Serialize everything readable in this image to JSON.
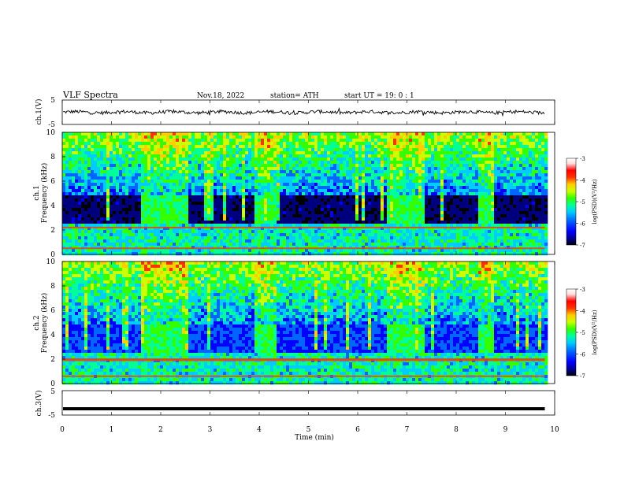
{
  "header": {
    "title": "VLF  Spectra",
    "date": "Nov.18, 2022",
    "station": "station= ATH",
    "start": "start  UT  =    19: 0   : 1"
  },
  "colors": {
    "scale": [
      "#000000",
      "#00007f",
      "#0000ff",
      "#0066ff",
      "#00ccff",
      "#00ff99",
      "#33ff00",
      "#ccff00",
      "#ffcc00",
      "#ff3300",
      "#ff0000",
      "#ffdddd",
      "#ffffff"
    ]
  },
  "chart_data": [
    {
      "type": "line",
      "name": "ch1-waveform",
      "ylabel": "ch.1(V)",
      "ylim": [
        -5,
        5
      ],
      "yticks": [
        "5",
        "-5"
      ],
      "baseline": 0,
      "noise_amplitude": 0.7
    },
    {
      "type": "heatmap",
      "name": "ch1-spectrogram",
      "ylabel_line1": "ch.1",
      "ylabel_line2": "Frequency  (kHz)",
      "ylim": [
        0,
        10
      ],
      "yticks": [
        "0",
        "2",
        "4",
        "6",
        "8",
        "10"
      ],
      "colorbar": {
        "label": "log(PSD)(V²/Hz)",
        "range": [
          -7,
          -3
        ],
        "ticks": [
          "-3",
          "-4",
          "-5",
          "-6",
          "-7"
        ]
      },
      "bursts_min": [
        [
          1.6,
          2.55
        ],
        [
          3.9,
          4.3
        ],
        [
          6.55,
          7.35
        ],
        [
          8.4,
          8.75
        ]
      ],
      "strong_lines_khz": [
        2.2,
        0.5
      ]
    },
    {
      "type": "heatmap",
      "name": "ch2-spectrogram",
      "ylabel_line1": "ch.2",
      "ylabel_line2": "Frequency  (kHz)",
      "ylim": [
        0,
        10
      ],
      "yticks": [
        "0",
        "2",
        "4",
        "6",
        "8",
        "10"
      ],
      "colorbar": {
        "label": "log(PSD)(V²/Hz)",
        "range": [
          -7,
          -3
        ],
        "ticks": [
          "-3",
          "-4",
          "-5",
          "-6",
          "-7"
        ]
      },
      "bursts_min": [
        [
          1.6,
          2.55
        ],
        [
          3.9,
          4.3
        ],
        [
          6.55,
          7.35
        ],
        [
          8.4,
          8.75
        ]
      ],
      "strong_lines_khz": [
        2.0,
        1.9,
        0.6
      ]
    },
    {
      "type": "line",
      "name": "ch3-waveform",
      "ylabel": "ch.3(V)",
      "ylim": [
        -5,
        5
      ],
      "yticks": [
        "5",
        "-5"
      ],
      "baseline": -2.4,
      "noise_amplitude": 0
    }
  ],
  "xaxis": {
    "label": "Time  (min)",
    "xlim": [
      0,
      10
    ],
    "ticks": [
      "0",
      "1",
      "2",
      "3",
      "4",
      "5",
      "6",
      "7",
      "8",
      "9",
      "10"
    ],
    "data_end": 9.8
  }
}
